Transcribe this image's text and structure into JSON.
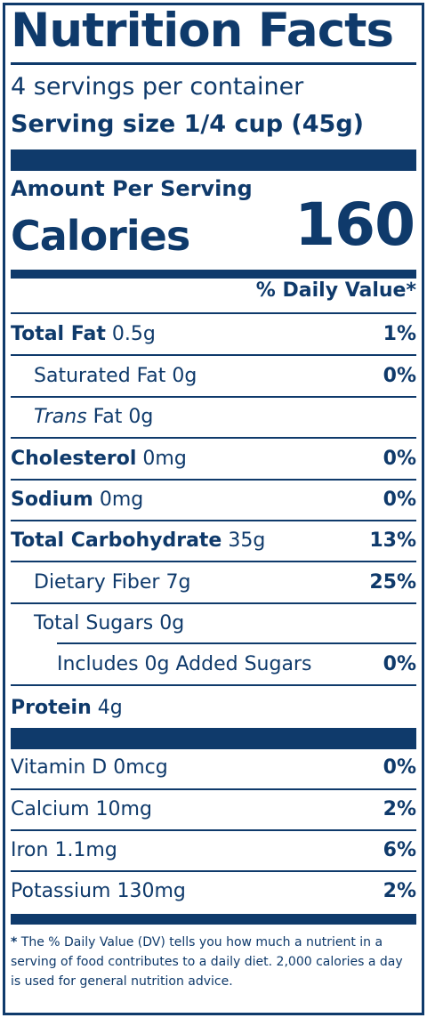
{
  "header": {
    "title": "Nutrition Facts",
    "servings": "4 servings per container",
    "serving_size": "Serving size 1/4 cup (45g)"
  },
  "calories": {
    "amount_label": "Amount Per Serving",
    "label": "Calories",
    "value": "160"
  },
  "dv_header": "% Daily Value*",
  "nutrients": [
    {
      "name": "Total Fat",
      "amount": " 0.5g",
      "dv": "1%"
    },
    {
      "name": "Saturated Fat",
      "amount": " 0g",
      "dv": "0%"
    },
    {
      "name_italic": "Trans",
      "name": " Fat",
      "amount": " 0g",
      "dv": ""
    },
    {
      "name": "Cholesterol",
      "amount": " 0mg",
      "dv": "0%"
    },
    {
      "name": "Sodium",
      "amount": " 0mg",
      "dv": "0%"
    },
    {
      "name": "Total Carbohydrate",
      "amount": " 35g",
      "dv": "13%"
    },
    {
      "name": "Dietary Fiber",
      "amount": " 7g",
      "dv": "25%"
    },
    {
      "name": "Total Sugars",
      "amount": " 0g",
      "dv": ""
    },
    {
      "name": "Includes 0g Added Sugars",
      "amount": "",
      "dv": "0%"
    },
    {
      "name": "Protein",
      "amount": " 4g",
      "dv": ""
    }
  ],
  "vitamins": [
    {
      "name": "Vitamin D 0mcg",
      "dv": "0%"
    },
    {
      "name": "Calcium 10mg",
      "dv": "2%"
    },
    {
      "name": "Iron 1.1mg",
      "dv": "6%"
    },
    {
      "name": "Potassium 130mg",
      "dv": "2%"
    }
  ],
  "footnote": {
    "star": "*",
    "text": "The % Daily Value (DV) tells you how much a nutrient in a serving of food contributes to a daily diet. 2,000 calories a day is used for general nutrition advice."
  },
  "colors": {
    "ink": "#0f3a6b",
    "background": "#ffffff"
  }
}
